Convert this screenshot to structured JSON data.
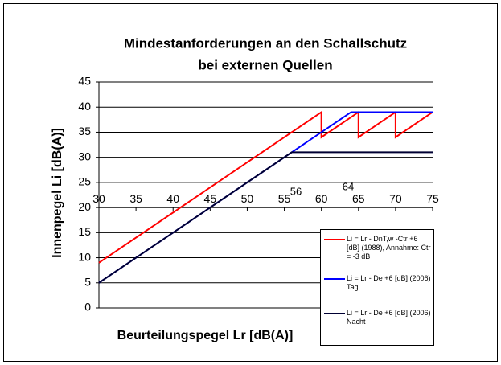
{
  "chart_data": {
    "type": "line",
    "title": [
      "Mindestanforderungen an den Schallschutz",
      "bei externen Quellen"
    ],
    "x_label": "Beurteilungspegel Lr [dB(A)]",
    "y_label": "Innenpegel Li [dB(A)]",
    "xlim": [
      30,
      75
    ],
    "xticks": [
      30,
      35,
      40,
      45,
      50,
      55,
      60,
      65,
      70,
      75
    ],
    "ylim": [
      0,
      45
    ],
    "yticks": [
      0,
      5,
      10,
      15,
      20,
      25,
      30,
      35,
      40,
      45
    ],
    "x_axis_at": 20,
    "grid": true,
    "legend": "right",
    "series": [
      {
        "name": "Li = Lr - DnT,w -Ctr +6  [dB] (1988), Annahme: Ctr = -3 dB",
        "color": "#ff0000",
        "x": [
          30,
          60,
          60,
          65,
          65,
          70,
          70,
          75
        ],
        "values": [
          9,
          39,
          34,
          39,
          34,
          39,
          34,
          39
        ]
      },
      {
        "name": "Li = Lr - De +6  [dB] (2006) Tag",
        "color": "#0000ff",
        "x": [
          30,
          56,
          64,
          75
        ],
        "values": [
          5,
          31,
          39,
          39
        ]
      },
      {
        "name": "Li = Lr - De +6  [dB] (2006) Nacht",
        "color": "#000033",
        "x": [
          30,
          56,
          75
        ],
        "values": [
          5,
          31,
          31
        ]
      }
    ],
    "annotations": [
      "56",
      "64"
    ]
  }
}
